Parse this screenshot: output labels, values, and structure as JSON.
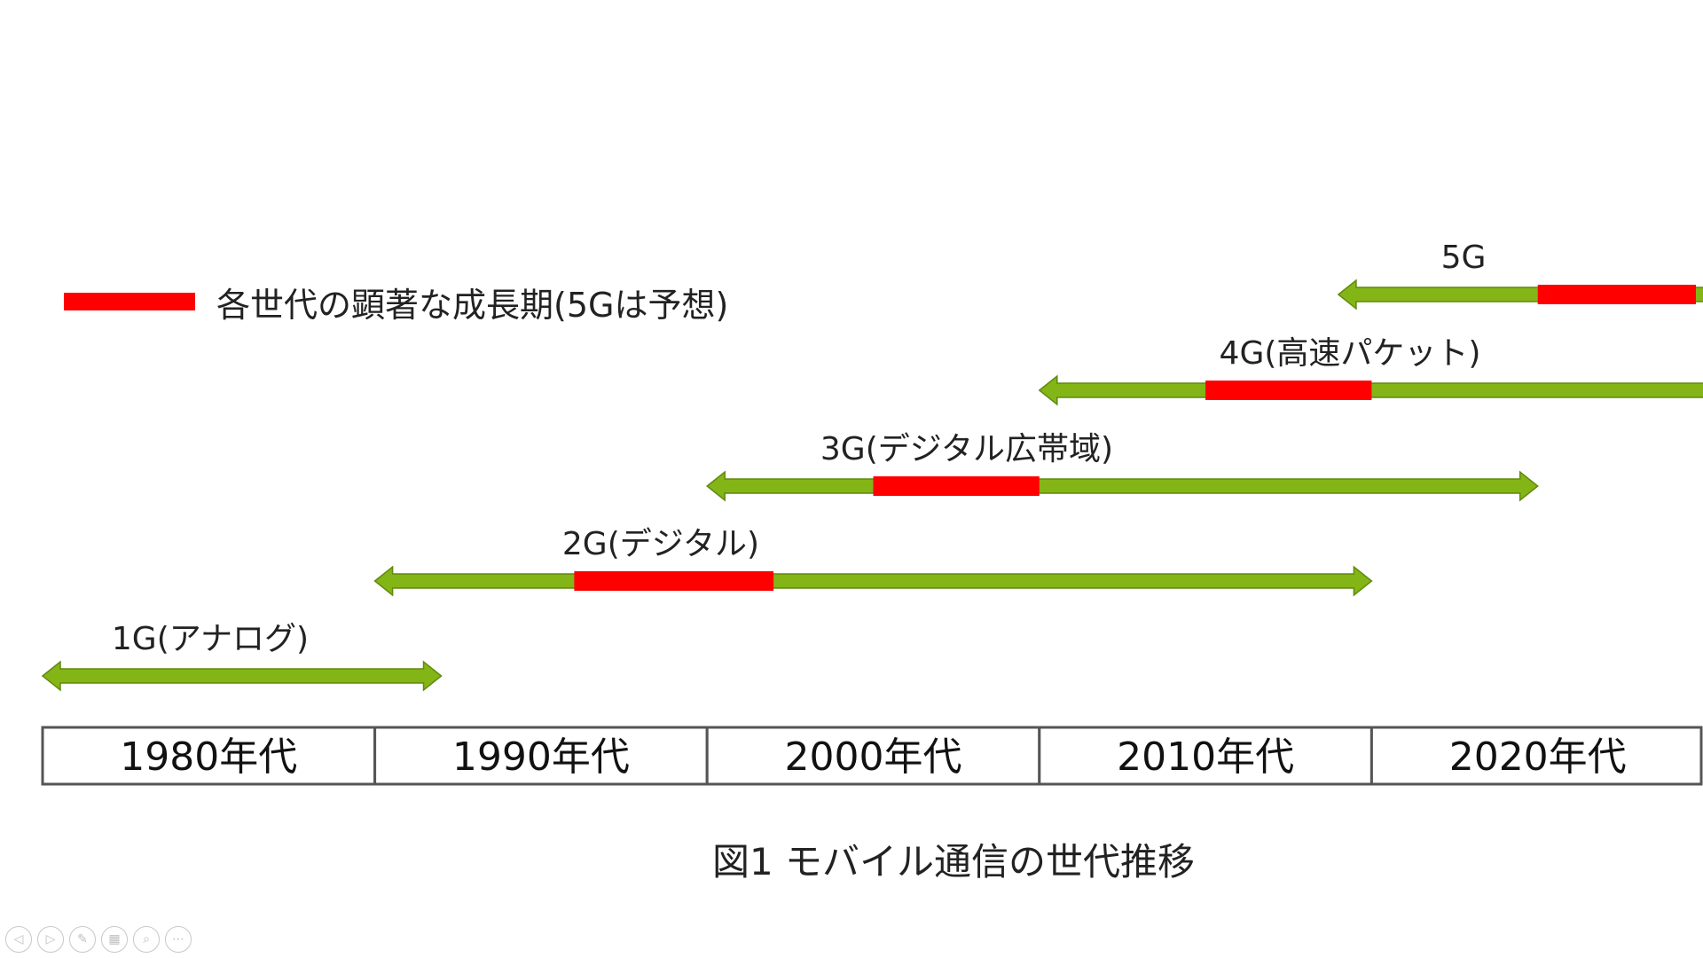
{
  "legend": {
    "label": "各世代の顕著な成長期(5Gは予想)",
    "color": "#ff0000"
  },
  "colors": {
    "arrow": "#84b516",
    "arrow_outline": "#5f8a0d",
    "growth": "#ff0000",
    "table_border": "#555555"
  },
  "generations": [
    {
      "label": "1G(アナログ)",
      "start": 1980,
      "end": 1992,
      "growth": null,
      "left_arrow": true,
      "right_arrow": true
    },
    {
      "label": "2G(デジタル)",
      "start": 1990,
      "end": 2020,
      "growth": [
        1996,
        2002
      ],
      "left_arrow": true,
      "right_arrow": true
    },
    {
      "label": "3G(デジタル広帯域)",
      "start": 2000,
      "end": 2025,
      "growth": [
        2005,
        2010
      ],
      "left_arrow": true,
      "right_arrow": true
    },
    {
      "label": "4G(高速パケット)",
      "start": 2010,
      "end": 2030,
      "growth": [
        2015,
        2020
      ],
      "left_arrow": true,
      "right_arrow": false
    },
    {
      "label": "5G",
      "start": 2019,
      "end": 2030,
      "growth": [
        2025,
        2030
      ],
      "left_arrow": true,
      "right_arrow": false
    }
  ],
  "decades": [
    "1980年代",
    "1990年代",
    "2000年代",
    "2010年代",
    "2020年代"
  ],
  "caption": "図1 モバイル通信の世代推移",
  "toolbar": [
    {
      "name": "previous-slide-icon",
      "glyph": "◁"
    },
    {
      "name": "next-slide-icon",
      "glyph": "▷"
    },
    {
      "name": "pen-icon",
      "glyph": "✎"
    },
    {
      "name": "slides-grid-icon",
      "glyph": "▦"
    },
    {
      "name": "zoom-icon",
      "glyph": "⌕"
    },
    {
      "name": "more-options-icon",
      "glyph": "⋯"
    }
  ]
}
